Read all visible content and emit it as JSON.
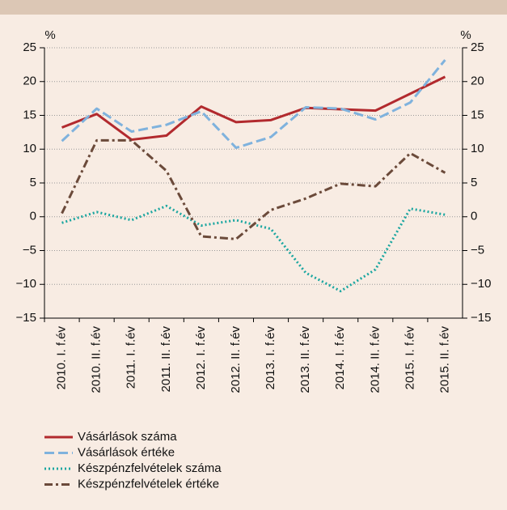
{
  "chart_data": {
    "type": "line",
    "ylabel": "%",
    "y2label": "%",
    "categories": [
      "2010. I. f.év",
      "2010. II. f.év",
      "2011. I. f.év",
      "2011. II. f.év",
      "2012. I. f.év",
      "2012. II. f.év",
      "2013. I. f.év",
      "2013. II. f.év",
      "2014. I. f.év",
      "2014. II. f.év",
      "2015. I. f.év",
      "2015. II. f.év"
    ],
    "series": [
      {
        "name": "Vásárlások száma",
        "color": "#b22a2e",
        "dash": "solid",
        "values": [
          13.2,
          15.2,
          11.4,
          12.0,
          16.3,
          14.0,
          14.3,
          16.1,
          15.9,
          15.7,
          18.2,
          20.7
        ]
      },
      {
        "name": "Vásárlások értéke",
        "color": "#7fb2dd",
        "dash": "dashed",
        "values": [
          11.2,
          16.0,
          12.6,
          13.6,
          15.6,
          10.2,
          11.8,
          16.2,
          16.0,
          14.4,
          16.9,
          23.2
        ]
      },
      {
        "name": "Készpénzfelvételek száma",
        "color": "#1aa6a0",
        "dash": "dotted",
        "values": [
          -0.9,
          0.7,
          -0.5,
          1.6,
          -1.3,
          -0.5,
          -1.8,
          -8.3,
          -11.0,
          -7.8,
          1.2,
          0.3
        ]
      },
      {
        "name": "Készpénzfelvételek értéke",
        "color": "#6b4a3a",
        "dash": "dashdot",
        "values": [
          0.5,
          11.3,
          11.3,
          6.8,
          -2.9,
          -3.3,
          1.0,
          2.7,
          4.9,
          4.5,
          9.4,
          6.5
        ]
      }
    ],
    "ylim": [
      -15,
      25
    ],
    "yticks": [
      {
        "value": -15,
        "label": "−15"
      },
      {
        "value": -10,
        "label": "−10"
      },
      {
        "value": -5,
        "label": "−5"
      },
      0,
      5,
      10,
      15,
      20,
      25
    ],
    "y2lim": [
      -15,
      25
    ],
    "y2ticks": [
      {
        "value": -15,
        "label": "−15"
      },
      {
        "value": -10,
        "label": "−10"
      },
      {
        "value": -5,
        "label": "−5"
      },
      0,
      5,
      10,
      15,
      20,
      25
    ],
    "grid": true,
    "legend": "bottom"
  }
}
